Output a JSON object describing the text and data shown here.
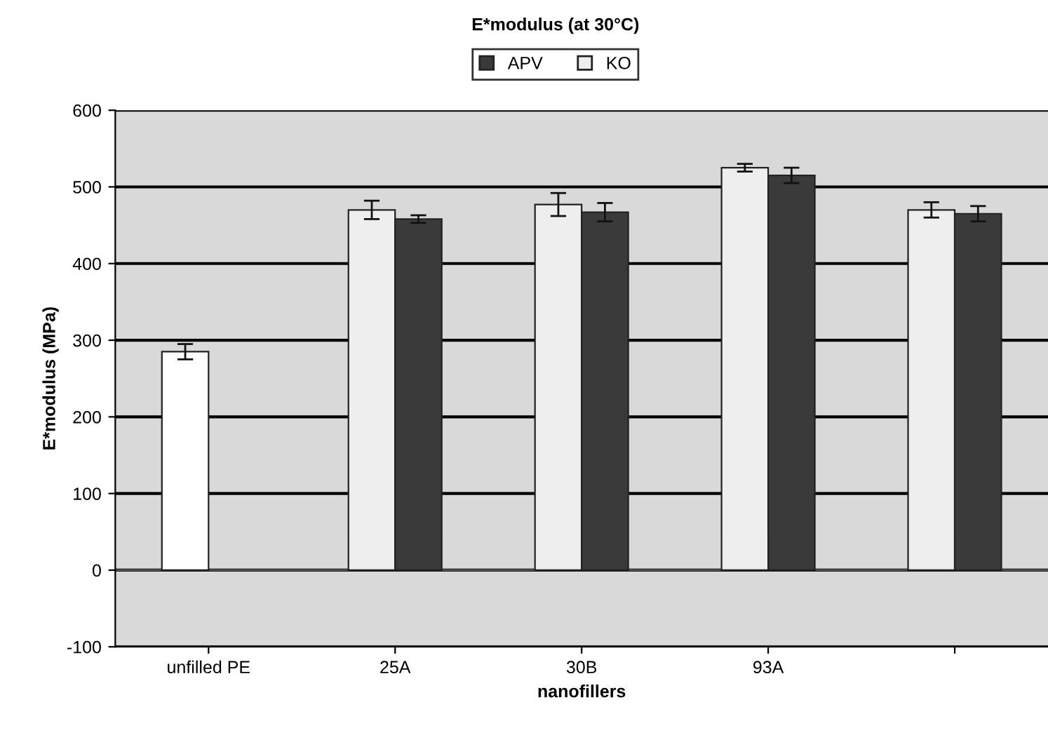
{
  "chart_data": {
    "type": "bar",
    "title": "E*modulus (at 30°C)",
    "xlabel": "nanofillers",
    "ylabel": "E*modulus (MPa)",
    "categories": [
      "unfilled PE",
      "25A",
      "30B",
      "93A",
      null
    ],
    "series": [
      {
        "name": "KO",
        "color": "#eeeeee",
        "colors": [
          "#ffffff",
          "#eeeeee",
          "#eeeeee",
          "#eeeeee",
          "#eeeeee"
        ],
        "values": [
          285,
          470,
          477,
          525,
          470
        ],
        "errors": [
          10,
          12,
          15,
          5,
          10
        ]
      },
      {
        "name": "APV",
        "color": "#3a3a3a",
        "values": [
          null,
          458,
          467,
          515,
          465
        ],
        "errors": [
          null,
          5,
          12,
          10,
          10
        ]
      }
    ],
    "ylim": [
      -100,
      600
    ],
    "yticks": [
      -100,
      0,
      100,
      200,
      300,
      400,
      500,
      600
    ],
    "grid": "y",
    "legend": "top"
  }
}
